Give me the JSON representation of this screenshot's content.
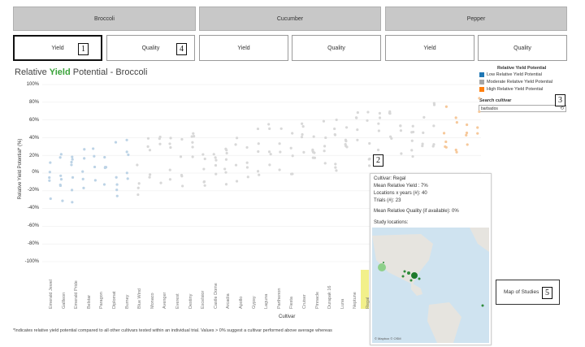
{
  "crops": [
    "Broccoli",
    "Cucumber",
    "Pepper"
  ],
  "mode_buttons": [
    "Yield",
    "Quality",
    "Yield",
    "Quality",
    "Yield",
    "Quality"
  ],
  "callouts": {
    "n1": "1",
    "n2": "2",
    "n3": "3",
    "n4": "4",
    "n5": "5"
  },
  "title": {
    "prefix": "Relative ",
    "yield": "Yield",
    "suffix": " Potential - Broccoli"
  },
  "legend": {
    "title": "Relative Yield Potential",
    "items": [
      {
        "label": "Low Relative Yield Potential",
        "color": "#1f77b4"
      },
      {
        "label": "Moderate Relative Yield Potential",
        "color": "#a6a6a6"
      },
      {
        "label": "High Relative Yield Potential",
        "color": "#ff7f0e"
      }
    ]
  },
  "search": {
    "label": "Search cultivar",
    "value": "barbados",
    "icon": "search-icon"
  },
  "axis": {
    "y_label": "Relative Yield Potential* (%)",
    "x_label": "Cultivar",
    "y_ticks": [
      "100%",
      "80%",
      "60%",
      "40%",
      "20%",
      "0%",
      "-20%",
      "-40%",
      "-60%",
      "-80%",
      "-100%"
    ]
  },
  "cultivars": [
    "Emerald Jewel",
    "Gallleon",
    "Emerald Pride",
    "Belstar",
    "Paragon",
    "Diplomat",
    "Burney",
    "Blue Wind",
    "Monaco",
    "Avenger",
    "Everest",
    "Destiny",
    "Excelsior",
    "Castle Dome",
    "Arcadia",
    "Apollo",
    "Gypsy",
    "Laguna",
    "Parthenon",
    "Fiesta",
    "Cruiser",
    "Pinnacle",
    "Durapak 16",
    "Luna",
    "Neptune",
    "Regal"
  ],
  "tooltip": {
    "cultivar": "Cultivar: Regal",
    "mean_yield": "Mean Relative Yield : 7%",
    "locations": "Locations x years (#): 40",
    "trials": "Trials (#): 23",
    "mean_quality": "Mean Relative Quality (if available): 0%",
    "study_locations": "Study locations:",
    "map_credit": "© Mapbox © OSM"
  },
  "map_button": "Map of Studies",
  "footnote": "*Indicates relative yield potential compared to all other cultivars tested within an individual trial. Values > 0% suggest a cultivar performed above average whereas"
}
